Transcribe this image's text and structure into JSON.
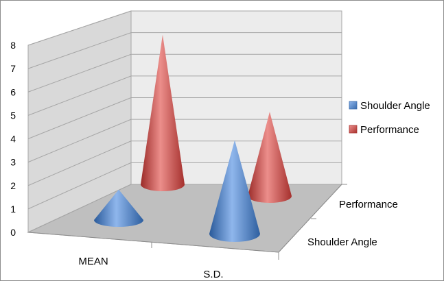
{
  "chart_data": {
    "type": "3d-cone",
    "categories": [
      "MEAN",
      "S.D."
    ],
    "depth_categories": [
      "Shoulder Angle",
      "Performance"
    ],
    "series": [
      {
        "name": "Shoulder Angle",
        "values": [
          1.3,
          4.0
        ]
      },
      {
        "name": "Performance",
        "values": [
          6.4,
          3.6
        ]
      }
    ],
    "ylim": [
      0,
      8
    ],
    "yticks": [
      "0",
      "1",
      "2",
      "3",
      "4",
      "5",
      "6",
      "7",
      "8"
    ],
    "grid": true,
    "legend_position": "right",
    "colors": {
      "Shoulder Angle": "#4a7ebb",
      "Performance": "#be4b48"
    }
  }
}
